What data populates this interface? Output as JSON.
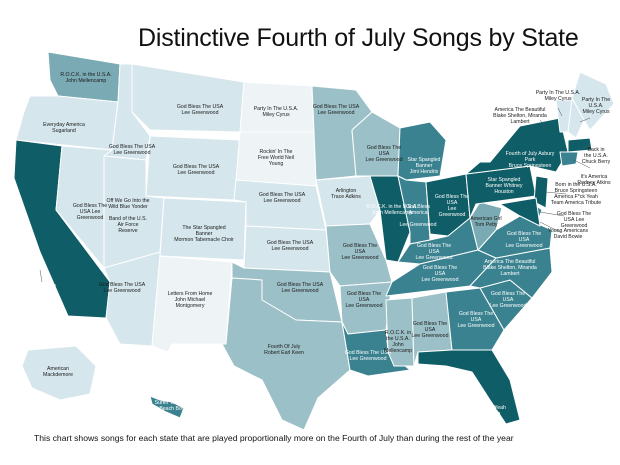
{
  "title": "Distinctive Fourth of July Songs by State",
  "caption": "This chart shows songs for each state that are played proportionally more on the Fourth of July than during the rest of the year",
  "colors": {
    "light": "#d5e6ec",
    "medium": "#9cc0c7",
    "mid": "#7aaab3",
    "dark": "#3a8290",
    "darkest": "#0f5d66",
    "border": "#ffffff"
  },
  "states": [
    {
      "id": "WA",
      "shade": "mid",
      "lines": [
        "R.O.C.K. in the U.S.A.",
        "John Mellencamp"
      ]
    },
    {
      "id": "OR",
      "shade": "light",
      "lines": [
        "Everyday America",
        "Sugarland"
      ]
    },
    {
      "id": "CA",
      "shade": "darkest",
      "lines": [
        "America F*ck Yeah",
        "Team America",
        "Tribute"
      ]
    },
    {
      "id": "NV",
      "shade": "light",
      "lines": [
        "God Bless The",
        "USA Lee",
        "Greenwood"
      ]
    },
    {
      "id": "ID",
      "shade": "light",
      "lines": [
        "God Bless The USA",
        "Lee Greenwood"
      ]
    },
    {
      "id": "MT",
      "shade": "light",
      "lines": [
        "God Bless The USA",
        "Lee Greenwood"
      ]
    },
    {
      "id": "WY",
      "shade": "light",
      "lines": [
        "God Bless The USA",
        "Lee Greenwood"
      ]
    },
    {
      "id": "UT",
      "shade": "light",
      "lines": [
        "Off We Go Into the",
        "Wild Blue Yonder",
        "",
        "Band of the U.S.",
        "Air Force",
        "Reserve"
      ]
    },
    {
      "id": "CO",
      "shade": "light",
      "lines": [
        "The Star Spangled",
        "Banner",
        "Mormon Tabernacle Choir"
      ]
    },
    {
      "id": "AZ",
      "shade": "light",
      "lines": [
        "God Bless The USA",
        "Lee Greenwood"
      ]
    },
    {
      "id": "NM",
      "shade": "white",
      "lines": [
        "Letters From Home",
        "John Michael",
        "Montgomery"
      ]
    },
    {
      "id": "ND",
      "shade": "white",
      "lines": [
        "Party In The U.S.A.",
        "Miley Cyrus"
      ]
    },
    {
      "id": "SD",
      "shade": "white",
      "lines": [
        "Rockin' In The",
        "Free World Neil",
        "Young"
      ]
    },
    {
      "id": "NE",
      "shade": "light",
      "lines": [
        "God Bless The USA",
        "Lee Greenwood"
      ]
    },
    {
      "id": "KS",
      "shade": "light",
      "lines": [
        "God Bless The USA",
        "Lee Greenwood"
      ]
    },
    {
      "id": "OK",
      "shade": "medium",
      "lines": [
        "God Bless The USA",
        "Lee Greenwood"
      ]
    },
    {
      "id": "TX",
      "shade": "medium",
      "lines": [
        "Fourth Of July",
        "Robert Earl Keen"
      ]
    },
    {
      "id": "MN",
      "shade": "medium",
      "lines": [
        "God Bless The USA",
        "Lee Greenwood"
      ]
    },
    {
      "id": "IA",
      "shade": "light",
      "lines": [
        "Arlington",
        "Trace Adkins"
      ]
    },
    {
      "id": "MO",
      "shade": "medium",
      "lines": [
        "God Bless The",
        "USA",
        "Lee Greenwood"
      ]
    },
    {
      "id": "AR",
      "shade": "medium",
      "lines": [
        "God Bless The",
        "USA",
        "Lee Greenwood"
      ]
    },
    {
      "id": "LA",
      "shade": "dark",
      "lines": [
        "God Bless The USA",
        "Lee Greenwood"
      ]
    },
    {
      "id": "WI",
      "shade": "medium",
      "lines": [
        "God Bless The",
        "USA",
        "Lee Greenwood"
      ]
    },
    {
      "id": "IL",
      "shade": "darkest",
      "lines": [
        "R.O.C.K. in the U.S.A.",
        "John Mellencamp"
      ]
    },
    {
      "id": "MS",
      "shade": "medium",
      "lines": [
        "R.O.C.K. in",
        "the U.S.A.",
        "John",
        "Mellencamp"
      ]
    },
    {
      "id": "MI",
      "shade": "dark",
      "lines": [
        "Star Spangled",
        "Banner",
        "Jimi Hendrix"
      ]
    },
    {
      "id": "IN",
      "shade": "dark",
      "lines": [
        "God Bless",
        "America",
        "",
        "Lee Greenwood"
      ]
    },
    {
      "id": "OH",
      "shade": "darkest",
      "lines": [
        "God Bless The",
        "USA",
        "Lee",
        "Greenwood"
      ]
    },
    {
      "id": "KY",
      "shade": "dark",
      "lines": [
        "God Bless The",
        "USA",
        "Lee Greenwood"
      ]
    },
    {
      "id": "TN",
      "shade": "dark",
      "lines": [
        "God Bless The",
        "USA",
        "Lee Greenwood"
      ]
    },
    {
      "id": "AL",
      "shade": "medium",
      "lines": [
        "God Bless The",
        "USA",
        "Lee Greenwood"
      ]
    },
    {
      "id": "GA",
      "shade": "dark",
      "lines": [
        "God Bless The",
        "USA",
        "Lee Greenwood"
      ]
    },
    {
      "id": "FL",
      "shade": "darkest",
      "lines": [
        "America F*ck Yeah",
        "Team America",
        "Tribute"
      ]
    },
    {
      "id": "SC",
      "shade": "dark",
      "lines": [
        "God Bless The",
        "USA",
        "Lee Greenwood"
      ]
    },
    {
      "id": "NC",
      "shade": "dark",
      "lines": [
        "America The Beautiful",
        "Blake Shelton, Miranda",
        "Lambert"
      ]
    },
    {
      "id": "VA",
      "shade": "dark",
      "lines": [
        "God Bless The",
        "USA",
        "Lee Greenwood"
      ]
    },
    {
      "id": "WV",
      "shade": "mid",
      "lines": [
        "American Girl",
        "Tom Petty"
      ]
    },
    {
      "id": "PA",
      "shade": "darkest",
      "lines": [
        "Star Spangled",
        "Banner Whitney",
        "Houston"
      ]
    },
    {
      "id": "NY",
      "shade": "darkest",
      "lines": [
        "Fourth of July Asbury",
        "Park",
        "Bruce Springsteen"
      ]
    },
    {
      "id": "VT",
      "shade": "light",
      "lines": [
        "Party In The U.S.A.",
        "Miley Cyrus"
      ]
    },
    {
      "id": "NH",
      "shade": "light",
      "lines": [
        "Party In The",
        "U.S.A.",
        "Miley Cyrus"
      ]
    },
    {
      "id": "ME",
      "shade": "light",
      "lines": []
    },
    {
      "id": "MA",
      "shade": "darkest",
      "lines": [
        "Back in",
        "the U.S.A.",
        "Chuck Berry"
      ]
    },
    {
      "id": "CT",
      "shade": "dark",
      "lines": [
        "It's America",
        "Rodney Atkins"
      ]
    },
    {
      "id": "NJ",
      "shade": "darkest",
      "lines": [
        "Born in the U.S.A.",
        "Bruce Springsteen",
        "America F*ck Yeah",
        "Team America Tribute"
      ]
    },
    {
      "id": "DE",
      "shade": "dark",
      "lines": [
        "God Bless The",
        "USA Lee",
        "Greenwood"
      ]
    },
    {
      "id": "MD",
      "shade": "darkest",
      "lines": [
        "Young Americans",
        "David Bowie"
      ]
    },
    {
      "id": "ME_ext",
      "shade": "light",
      "lines": [
        "America The Beautiful",
        "Blake Shelton, Miranda",
        "Lambert"
      ]
    },
    {
      "id": "AK",
      "shade": "light",
      "lines": [
        "American",
        "Mackdemore"
      ]
    },
    {
      "id": "HI",
      "shade": "dark",
      "lines": [
        "Surfin' USA",
        "The Beach Boys"
      ]
    }
  ]
}
